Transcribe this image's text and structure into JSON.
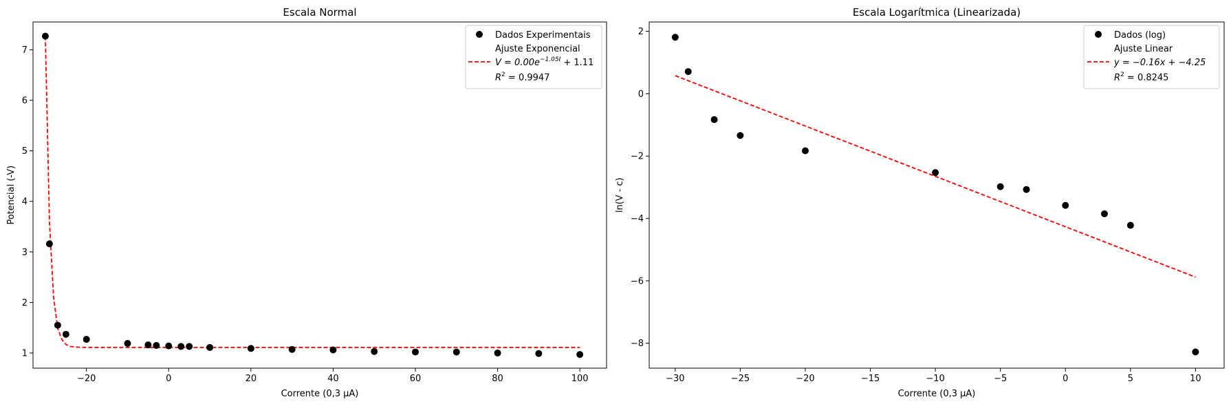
{
  "chart_data": [
    {
      "type": "scatter",
      "title": "Escala Normal",
      "xlabel": "Corrente (0,3 μA)",
      "ylabel": "Potencial (-V)",
      "xlim": [
        -33,
        106.5
      ],
      "ylim": [
        0.7,
        7.55
      ],
      "xticks": [
        -20,
        0,
        20,
        40,
        60,
        80,
        100
      ],
      "xtick_labels": [
        "−20",
        "0",
        "20",
        "40",
        "60",
        "80",
        "100"
      ],
      "yticks": [
        1,
        2,
        3,
        4,
        5,
        6,
        7
      ],
      "ytick_labels": [
        "1",
        "2",
        "3",
        "4",
        "5",
        "6",
        "7"
      ],
      "grid": false,
      "legend_position": "top-right",
      "series": [
        {
          "name": "Dados Experimentais",
          "kind": "scatter",
          "color": "#000000",
          "x": [
            -30,
            -29,
            -27,
            -25,
            -20,
            -10,
            -5,
            -3,
            0,
            3,
            5,
            10,
            20,
            30,
            40,
            50,
            60,
            70,
            80,
            90,
            100
          ],
          "y": [
            7.27,
            3.16,
            1.55,
            1.37,
            1.27,
            1.19,
            1.16,
            1.15,
            1.14,
            1.13,
            1.13,
            1.11,
            1.09,
            1.07,
            1.06,
            1.03,
            1.02,
            1.02,
            1.0,
            0.99,
            0.97
          ]
        },
        {
          "name": "Ajuste Exponencial",
          "kind": "line",
          "dash": "dashed",
          "color": "#ff0000",
          "x": [
            -30,
            -29,
            -28,
            -27,
            -26,
            -25,
            -24,
            -22,
            -20,
            0,
            100
          ],
          "y": [
            7.27,
            3.6,
            2.11,
            1.49,
            1.27,
            1.17,
            1.13,
            1.115,
            1.11,
            1.11,
            1.11
          ]
        }
      ],
      "legend": {
        "entries": [
          "Dados Experimentais",
          "Ajuste Exponencial"
        ],
        "equation": {
          "lead": "V = 0.00e",
          "exponent": "−1.05I",
          "tail": " + 1.11"
        },
        "r2": {
          "lead": "R",
          "sup": "2",
          "tail": " = 0.9947"
        }
      }
    },
    {
      "type": "scatter",
      "title": "Escala Logarítmica (Linearizada)",
      "xlabel": "Corrente (0,3 μA)",
      "ylabel": "ln(V - c)",
      "xlim": [
        -32,
        12.2
      ],
      "ylim": [
        -8.8,
        2.3
      ],
      "xticks": [
        -30,
        -25,
        -20,
        -15,
        -10,
        -5,
        0,
        5,
        10
      ],
      "xtick_labels": [
        "−30",
        "−25",
        "−20",
        "−15",
        "−10",
        "−5",
        "0",
        "5",
        "10"
      ],
      "yticks": [
        -8,
        -6,
        -4,
        -2,
        0,
        2
      ],
      "ytick_labels": [
        "−8",
        "−6",
        "−4",
        "−2",
        "0",
        "2"
      ],
      "grid": false,
      "legend_position": "top-right",
      "series": [
        {
          "name": "Dados (log)",
          "kind": "scatter",
          "color": "#000000",
          "x": [
            -30,
            -29,
            -27,
            -25,
            -20,
            -10,
            -5,
            -3,
            0,
            3,
            5,
            10
          ],
          "y": [
            1.81,
            0.71,
            -0.83,
            -1.34,
            -1.83,
            -2.53,
            -2.98,
            -3.07,
            -3.58,
            -3.85,
            -4.22,
            -8.28
          ]
        },
        {
          "name": "Ajuste Linear",
          "kind": "line",
          "dash": "dashed",
          "color": "#ff0000",
          "x": [
            -30,
            10
          ],
          "y": [
            0.58,
            -5.88
          ]
        }
      ],
      "legend": {
        "entries": [
          "Dados (log)",
          "Ajuste Linear"
        ],
        "equation": {
          "lead": "y = −0.16x + −4.25"
        },
        "r2": {
          "lead": "R",
          "sup": "2",
          "tail": " = 0.8245"
        }
      }
    }
  ]
}
